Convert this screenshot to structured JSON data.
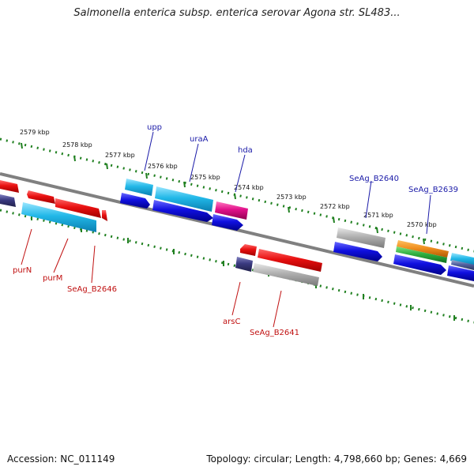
{
  "title": "Salmonella enterica subsp. enterica serovar Agona str. SL483...",
  "footer": {
    "accession": "Accession: NC_011149",
    "summary": "Topology: circular; Length: 4,798,660 bp; Genes: 4,669"
  },
  "scale_labels": [
    "2579 kbp",
    "2578 kbp",
    "2577 kbp",
    "2576 kbp",
    "2575 kbp",
    "2574 kbp",
    "2573 kbp",
    "2572 kbp",
    "2571 kbp",
    "2570 kbp"
  ],
  "gene_labels_top": [
    "upp",
    "uraA",
    "hda",
    "SeAg_B2640",
    "SeAg_B2639"
  ],
  "gene_labels_bottom": [
    "purN",
    "purM",
    "SeAg_B2646",
    "arsC",
    "SeAg_B2641"
  ],
  "colors": {
    "cds_red": "#e81010",
    "cds_cyan": "#22b8e8",
    "cds_blue": "#1010e0",
    "cds_navy": "#3a3a80",
    "cds_magenta": "#e0108a",
    "cds_gray": "#b0b0b0",
    "cds_orange": "#f09020",
    "cds_green": "#30b040",
    "backbone": "#808080",
    "ticks": "#208020",
    "label_top": "#1a1aa8",
    "label_bottom": "#c01010"
  }
}
